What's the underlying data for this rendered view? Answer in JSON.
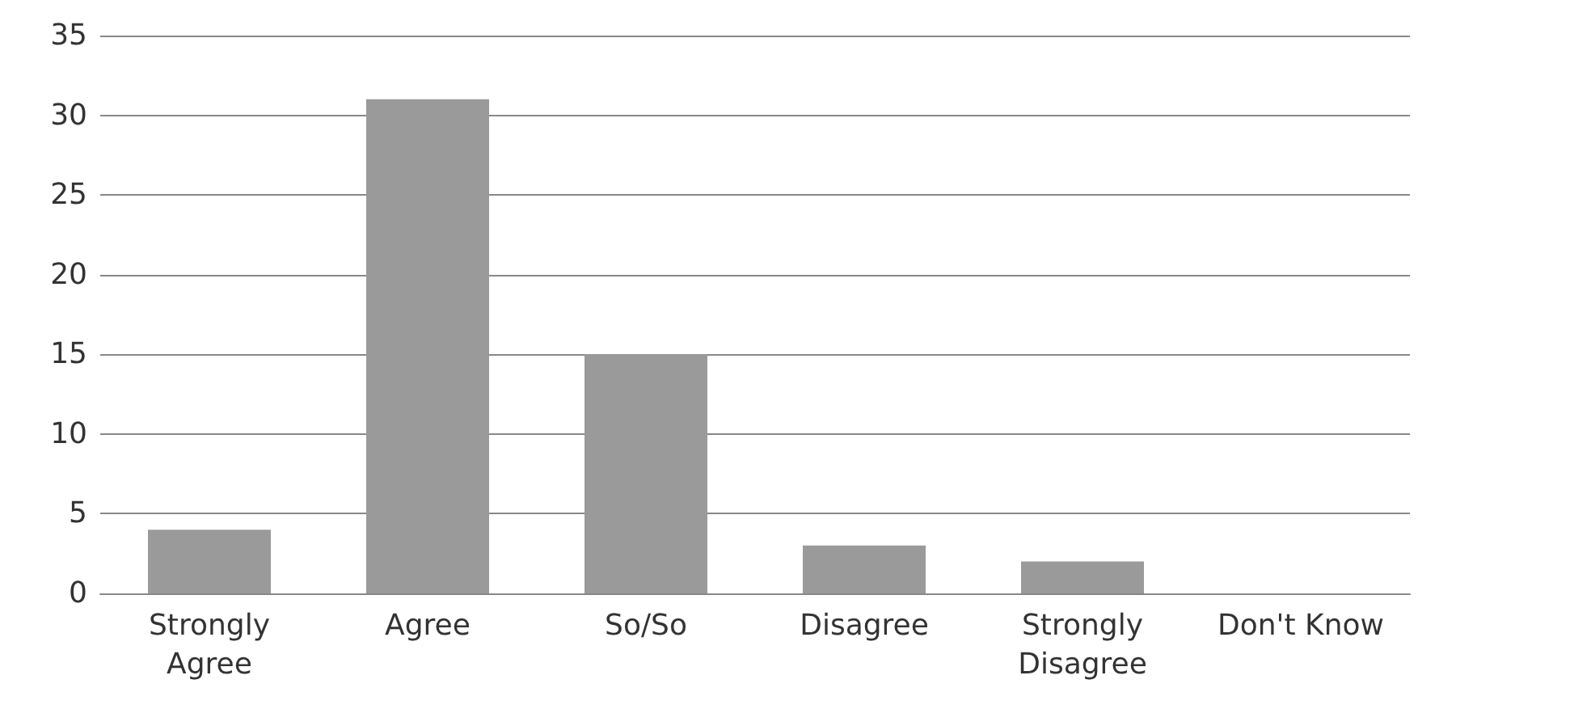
{
  "chart_data": {
    "type": "bar",
    "categories": [
      "Strongly\nAgree",
      "Agree",
      "So/So",
      "Disagree",
      "Strongly\nDisagree",
      "Don't Know"
    ],
    "values": [
      4,
      31,
      15,
      3,
      2,
      0
    ],
    "color": "#9a9a9a",
    "ylim": [
      0,
      35
    ],
    "yticks": [
      0,
      5,
      10,
      15,
      20,
      25,
      30,
      35
    ],
    "grid": "y"
  }
}
